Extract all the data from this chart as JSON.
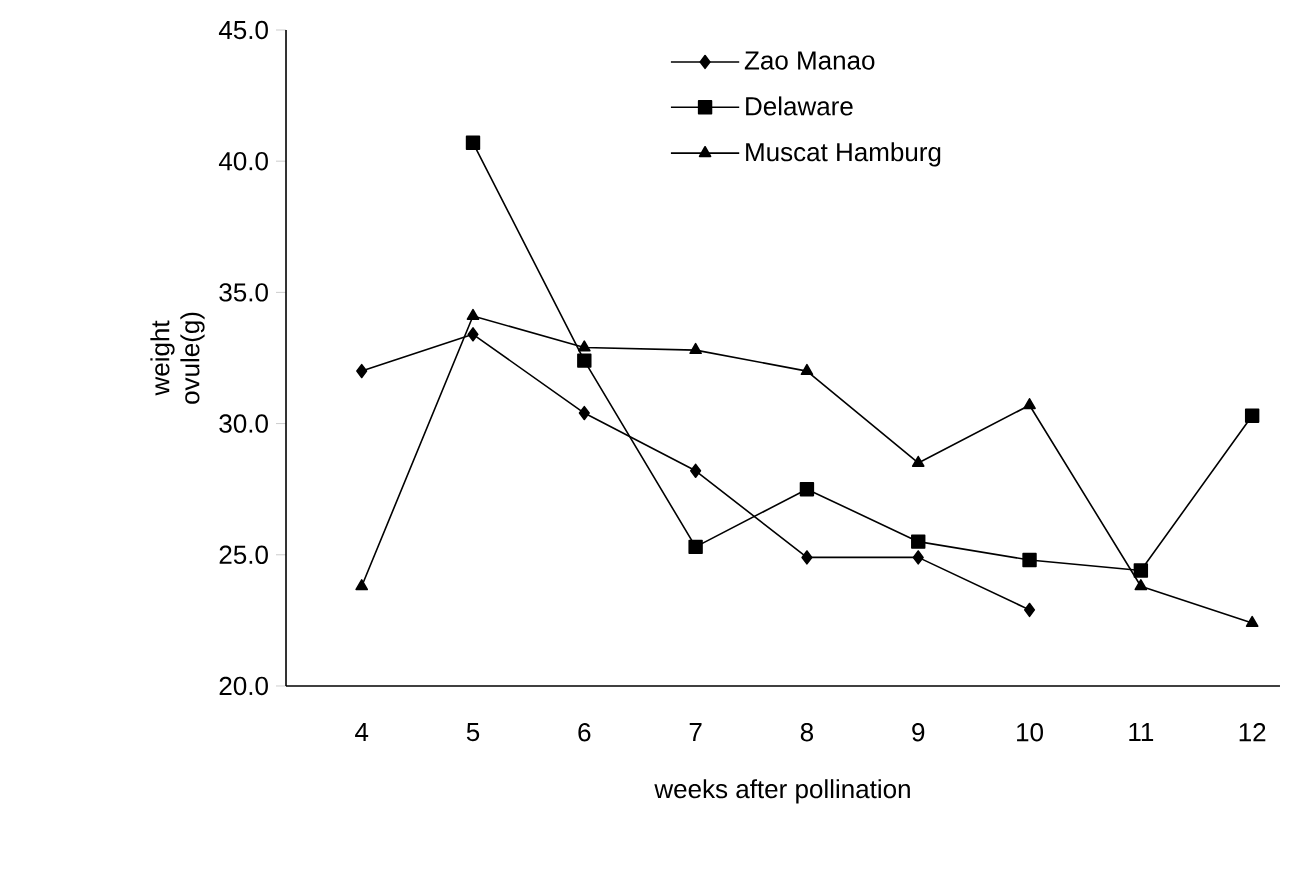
{
  "chart_data": {
    "type": "line",
    "xlabel": "weeks after pollination",
    "ylabel": "weight ovule(g)",
    "categories": [
      "4",
      "5",
      "6",
      "7",
      "8",
      "9",
      "10",
      "11",
      "12"
    ],
    "series": [
      {
        "name": "Zao Manao",
        "color": "#000000",
        "marker": "diamond",
        "values": [
          32.0,
          33.4,
          30.4,
          28.2,
          24.9,
          24.9,
          22.9,
          null,
          null
        ]
      },
      {
        "name": "Delaware",
        "color": "#000000",
        "marker": "square",
        "values": [
          null,
          40.7,
          32.4,
          25.3,
          27.5,
          25.5,
          24.8,
          24.4,
          30.3
        ]
      },
      {
        "name": "Muscat Hamburg",
        "color": "#000000",
        "marker": "triangle",
        "values": [
          23.8,
          34.1,
          32.9,
          32.8,
          32.0,
          28.5,
          30.7,
          23.8,
          22.4
        ]
      }
    ],
    "ylim": [
      20,
      45
    ],
    "yticks": [
      {
        "value": 20,
        "label": "20.0"
      },
      {
        "value": 25,
        "label": "25.0"
      },
      {
        "value": 30,
        "label": "30.0"
      },
      {
        "value": 35,
        "label": "35.0"
      },
      {
        "value": 40,
        "label": "40.0"
      },
      {
        "value": 45,
        "label": "45.0"
      }
    ],
    "grid": false,
    "legend": "top right",
    "line_style": "solid"
  }
}
